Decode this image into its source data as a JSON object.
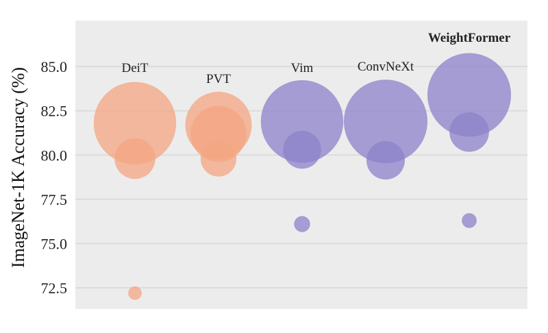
{
  "chart_data": {
    "type": "scatter",
    "ylabel": "ImageNet-1K Accuracy (%)",
    "xlabel": "",
    "title": "",
    "ylim": [
      71.3,
      87.6
    ],
    "yticks": [
      72.5,
      75.0,
      77.5,
      80.0,
      82.5,
      85.0
    ],
    "ytick_labels": [
      "72.5",
      "75.0",
      "77.5",
      "80.0",
      "82.5",
      "85.0"
    ],
    "grid": true,
    "background": "#ececec",
    "groups": [
      {
        "label": "DeiT",
        "bold": false,
        "color": "#f4a582",
        "points": [
          {
            "accuracy": 72.2,
            "size": 1
          },
          {
            "accuracy": 79.8,
            "size": 9
          },
          {
            "accuracy": 81.8,
            "size": 37
          }
        ]
      },
      {
        "label": "PVT",
        "bold": false,
        "color": "#f4a582",
        "points": [
          {
            "accuracy": 79.8,
            "size": 7
          },
          {
            "accuracy": 81.2,
            "size": 17
          },
          {
            "accuracy": 81.7,
            "size": 24
          }
        ]
      },
      {
        "label": "Vim",
        "bold": false,
        "color": "#8c82c9",
        "points": [
          {
            "accuracy": 76.1,
            "size": 1.4
          },
          {
            "accuracy": 80.3,
            "size": 7.8
          },
          {
            "accuracy": 81.9,
            "size": 37
          }
        ]
      },
      {
        "label": "ConvNeXt",
        "bold": false,
        "color": "#8c82c9",
        "points": [
          {
            "accuracy": 79.7,
            "size": 8
          },
          {
            "accuracy": 81.9,
            "size": 38
          }
        ]
      },
      {
        "label": "WeightFormer",
        "bold": true,
        "color": "#8c82c9",
        "points": [
          {
            "accuracy": 76.3,
            "size": 1.2
          },
          {
            "accuracy": 81.3,
            "size": 8.5
          },
          {
            "accuracy": 83.4,
            "size": 38
          }
        ]
      }
    ]
  }
}
